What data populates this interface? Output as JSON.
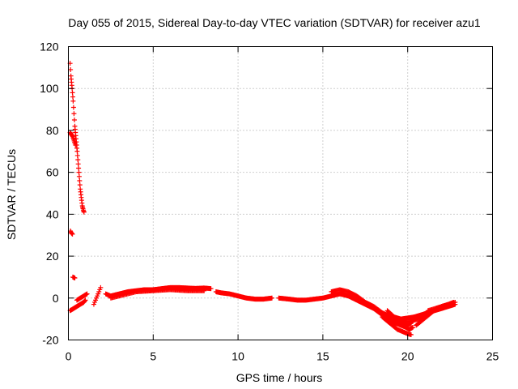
{
  "chart_data": {
    "type": "scatter",
    "title": "Day 055 of 2015, Sidereal Day-to-day VTEC variation (SDTVAR) for receiver azu1",
    "xlabel": "GPS time / hours",
    "ylabel": "SDTVAR / TECUs",
    "xlim": [
      0,
      25
    ],
    "ylim": [
      -20,
      120
    ],
    "xticks": [
      0,
      5,
      10,
      15,
      20,
      25
    ],
    "yticks": [
      -20,
      0,
      20,
      40,
      60,
      80,
      100,
      120
    ],
    "grid": true,
    "marker": "plus",
    "color": "#ff0000",
    "series": [
      {
        "name": "SDTVAR",
        "segments": [
          {
            "points": [
              [
                0.1,
                112
              ],
              [
                0.15,
                106
              ],
              [
                0.22,
                100
              ],
              [
                0.28,
                94
              ],
              [
                0.33,
                88
              ],
              [
                0.38,
                82
              ],
              [
                0.45,
                76
              ],
              [
                0.52,
                70
              ],
              [
                0.58,
                64
              ],
              [
                0.64,
                58
              ],
              [
                0.7,
                52
              ],
              [
                0.76,
                48
              ],
              [
                0.82,
                44
              ],
              [
                0.88,
                42
              ],
              [
                0.92,
                41
              ]
            ],
            "step": 0.02
          },
          {
            "points": [
              [
                0.1,
                79
              ],
              [
                0.18,
                78
              ],
              [
                0.26,
                77
              ],
              [
                0.34,
                75
              ],
              [
                0.42,
                73
              ]
            ],
            "step": 0.03
          },
          {
            "points": [
              [
                0.12,
                32
              ],
              [
                0.18,
                31
              ],
              [
                0.24,
                30.5
              ]
            ],
            "step": 0.04
          },
          {
            "points": [
              [
                0.26,
                10
              ],
              [
                0.32,
                9.8
              ],
              [
                0.38,
                9.6
              ]
            ],
            "step": 0.04
          },
          {
            "points": [
              [
                0.1,
                -6
              ],
              [
                0.3,
                -5
              ],
              [
                0.5,
                -4
              ],
              [
                0.7,
                -3
              ],
              [
                0.9,
                -2
              ],
              [
                1.0,
                -1
              ]
            ],
            "step": 0.03
          },
          {
            "points": [
              [
                0.5,
                -1
              ],
              [
                0.7,
                0
              ],
              [
                0.9,
                1
              ],
              [
                1.1,
                2
              ]
            ],
            "step": 0.04
          },
          {
            "points": [
              [
                1.5,
                -3
              ],
              [
                1.6,
                -1
              ],
              [
                1.7,
                1
              ],
              [
                1.8,
                3
              ],
              [
                1.9,
                5
              ]
            ],
            "step": 0.05
          },
          {
            "points": [
              [
                2.2,
                2
              ],
              [
                2.5,
                1
              ],
              [
                3.0,
                2
              ],
              [
                3.5,
                3
              ],
              [
                4.0,
                3.5
              ],
              [
                4.5,
                4
              ],
              [
                5.0,
                4
              ],
              [
                5.5,
                4.5
              ],
              [
                6.0,
                5
              ],
              [
                6.5,
                5
              ],
              [
                7.0,
                4.8
              ],
              [
                7.5,
                4.6
              ],
              [
                8.0,
                4.8
              ],
              [
                8.4,
                4.5
              ]
            ],
            "step": 0.04
          },
          {
            "points": [
              [
                2.5,
                0
              ],
              [
                3.0,
                1
              ],
              [
                3.5,
                2
              ],
              [
                4.0,
                3
              ],
              [
                5.0,
                3.5
              ],
              [
                6.0,
                4
              ],
              [
                7.0,
                3.5
              ],
              [
                8.0,
                3.5
              ]
            ],
            "step": 0.06
          },
          {
            "points": [
              [
                8.7,
                3
              ],
              [
                9.0,
                2.5
              ],
              [
                9.5,
                2
              ],
              [
                10.0,
                1
              ],
              [
                10.5,
                0
              ],
              [
                11.0,
                -0.5
              ],
              [
                11.5,
                -0.5
              ],
              [
                12.0,
                0
              ]
            ],
            "step": 0.04
          },
          {
            "points": [
              [
                12.4,
                0
              ],
              [
                13.0,
                -0.5
              ],
              [
                13.5,
                -1
              ],
              [
                14.0,
                -1
              ],
              [
                14.5,
                -0.5
              ],
              [
                15.0,
                0
              ],
              [
                15.5,
                1
              ],
              [
                16.0,
                2
              ],
              [
                16.5,
                1
              ],
              [
                17.0,
                -1
              ],
              [
                17.5,
                -3
              ],
              [
                18.0,
                -5
              ],
              [
                18.5,
                -8
              ],
              [
                19.0,
                -11
              ],
              [
                19.3,
                -12
              ],
              [
                19.6,
                -13
              ],
              [
                19.9,
                -14
              ],
              [
                20.1,
                -15
              ],
              [
                20.3,
                -14
              ]
            ],
            "step": 0.04
          },
          {
            "points": [
              [
                15.5,
                3
              ],
              [
                16.0,
                4
              ],
              [
                16.5,
                3
              ],
              [
                17.0,
                1
              ],
              [
                17.5,
                -2
              ],
              [
                18.0,
                -4
              ],
              [
                18.5,
                -7
              ],
              [
                19.0,
                -9
              ],
              [
                19.5,
                -11
              ],
              [
                19.8,
                -12
              ],
              [
                20.0,
                -13
              ],
              [
                20.2,
                -12
              ]
            ],
            "step": 0.05
          },
          {
            "points": [
              [
                18.5,
                -9
              ],
              [
                18.8,
                -11
              ],
              [
                19.1,
                -13
              ],
              [
                19.4,
                -15
              ],
              [
                19.7,
                -16
              ],
              [
                20.0,
                -17
              ],
              [
                20.2,
                -17.5
              ]
            ],
            "step": 0.05
          },
          {
            "points": [
              [
                18.8,
                -6
              ],
              [
                19.2,
                -9
              ],
              [
                19.6,
                -10
              ],
              [
                20.0,
                -9.5
              ],
              [
                20.4,
                -9
              ],
              [
                20.8,
                -8
              ],
              [
                21.2,
                -7
              ],
              [
                21.6,
                -6
              ],
              [
                22.0,
                -5
              ],
              [
                22.4,
                -4
              ],
              [
                22.8,
                -3
              ]
            ],
            "step": 0.04
          },
          {
            "points": [
              [
                19.4,
                -12
              ],
              [
                19.8,
                -11.5
              ],
              [
                20.2,
                -11
              ],
              [
                20.6,
                -10
              ],
              [
                21.0,
                -9
              ]
            ],
            "step": 0.05
          },
          {
            "points": [
              [
                20.5,
                -13
              ],
              [
                20.8,
                -11
              ],
              [
                21.1,
                -9
              ],
              [
                21.4,
                -7
              ],
              [
                21.7,
                -5
              ],
              [
                22.0,
                -4
              ],
              [
                22.4,
                -3
              ],
              [
                22.7,
                -2
              ]
            ],
            "step": 0.05
          },
          {
            "points": [
              [
                21.2,
                -6
              ],
              [
                21.6,
                -5
              ],
              [
                22.0,
                -4
              ],
              [
                22.4,
                -3
              ],
              [
                22.8,
                -2
              ]
            ],
            "step": 0.06
          }
        ]
      }
    ]
  }
}
